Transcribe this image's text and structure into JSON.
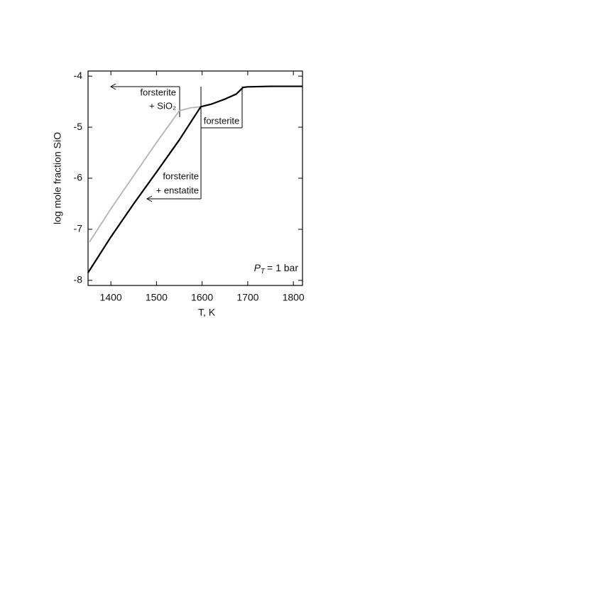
{
  "chart_data": {
    "type": "line",
    "xlabel": "T, K",
    "ylabel": "log mole fraction SiO",
    "xlim": [
      1350,
      1820
    ],
    "ylim": [
      -8.1,
      -3.9
    ],
    "xticks": [
      1400,
      1500,
      1600,
      1700,
      1800
    ],
    "yticks": [
      -4,
      -5,
      -6,
      -7,
      -8
    ],
    "series": [
      {
        "color": "#000000",
        "x": [
          1350,
          1400,
          1450,
          1500,
          1550,
          1597,
          1620,
          1650,
          1675,
          1690,
          1700,
          1750,
          1820
        ],
        "values": [
          -7.85,
          -7.15,
          -6.5,
          -5.88,
          -5.25,
          -4.6,
          -4.55,
          -4.45,
          -4.35,
          -4.22,
          -4.21,
          -4.2,
          -4.2
        ]
      },
      {
        "color": "#b3b3b3",
        "x": [
          1353,
          1400,
          1450,
          1500,
          1550,
          1575,
          1597
        ],
        "values": [
          -7.25,
          -6.6,
          -5.95,
          -5.3,
          -4.68,
          -4.62,
          -4.6
        ]
      }
    ],
    "annotations": [
      "forsterite",
      "+ SiO₂",
      "forsterite",
      "forsterite",
      "+ enstatite"
    ],
    "pressure_label": {
      "symbol": "P",
      "subscript": "T",
      "text": "= 1 bar"
    }
  }
}
